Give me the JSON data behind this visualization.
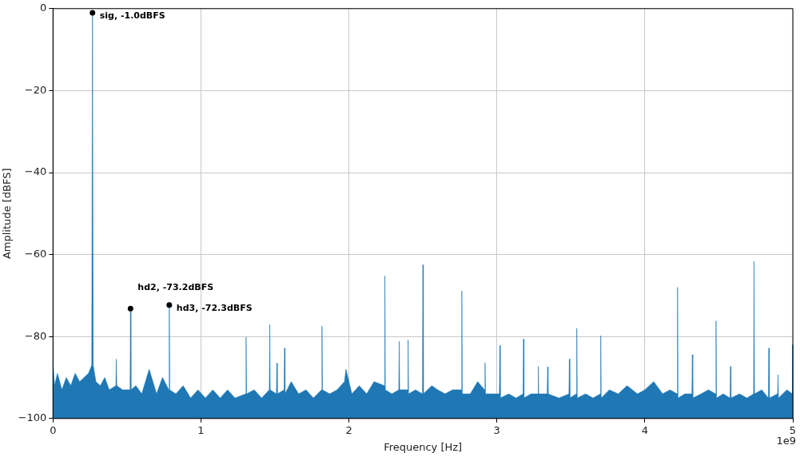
{
  "chart_data": {
    "type": "area",
    "xlabel": "Frequency [Hz]",
    "ylabel": "Amplitude [dBFS]",
    "xlim": [
      0,
      5
    ],
    "ylim": [
      -100,
      0
    ],
    "xticks": [
      0,
      1,
      2,
      3,
      4,
      5
    ],
    "yticks": [
      {
        "value": -100,
        "label": "−100"
      },
      {
        "value": -80,
        "label": "−80"
      },
      {
        "value": -60,
        "label": "−60"
      },
      {
        "value": -40,
        "label": "−40"
      },
      {
        "value": -20,
        "label": "−20"
      },
      0
    ],
    "grid": true,
    "annotations": [
      {
        "text": "sig, -1.0dBFS",
        "x": 0.267,
        "y": -1.0
      },
      {
        "text": "hd2, -73.2dBFS",
        "x": 0.524,
        "y": -73.2
      },
      {
        "text": "hd3, -72.3dBFS",
        "x": 0.786,
        "y": -72.3
      },
      "1e9"
    ],
    "series": [
      {
        "color": "#1f77b4",
        "x": [
          0,
          0,
          0.01,
          0.03,
          0.06,
          0.09,
          0.12,
          0.15,
          0.18,
          0.21,
          0.24,
          0.262,
          0.267,
          0.272,
          0.29,
          0.32,
          0.35,
          0.38,
          0.425,
          0.428,
          0.431,
          0.47,
          0.521,
          0.524,
          0.527,
          0.56,
          0.6,
          0.65,
          0.7,
          0.74,
          0.783,
          0.786,
          0.789,
          0.83,
          0.88,
          0.93,
          0.98,
          1.03,
          1.08,
          1.13,
          1.18,
          1.23,
          1.302,
          1.305,
          1.308,
          1.36,
          1.41,
          1.462,
          1.465,
          1.468,
          1.51,
          1.513,
          1.516,
          1.562,
          1.565,
          1.568,
          1.61,
          1.66,
          1.71,
          1.76,
          1.815,
          1.818,
          1.821,
          1.87,
          1.92,
          1.97,
          1.98,
          2.02,
          2.07,
          2.12,
          2.17,
          2.24,
          2.243,
          2.246,
          2.29,
          2.337,
          2.34,
          2.343,
          2.397,
          2.4,
          2.403,
          2.45,
          2.497,
          2.5,
          2.503,
          2.56,
          2.6,
          2.65,
          2.7,
          2.76,
          2.763,
          2.766,
          2.82,
          2.87,
          2.917,
          2.92,
          2.923,
          2.97,
          3.017,
          3.02,
          3.023,
          3.08,
          3.13,
          3.177,
          3.18,
          3.183,
          3.23,
          3.277,
          3.28,
          3.283,
          3.34,
          3.343,
          3.346,
          3.42,
          3.487,
          3.49,
          3.493,
          3.537,
          3.54,
          3.543,
          3.6,
          3.65,
          3.699,
          3.702,
          3.705,
          3.76,
          3.82,
          3.88,
          3.95,
          4.0,
          4.06,
          4.12,
          4.17,
          4.218,
          4.221,
          4.224,
          4.27,
          4.318,
          4.321,
          4.324,
          4.38,
          4.43,
          4.478,
          4.481,
          4.484,
          4.53,
          4.576,
          4.579,
          4.582,
          4.64,
          4.69,
          4.735,
          4.738,
          4.741,
          4.79,
          4.835,
          4.838,
          4.841,
          4.897,
          4.9,
          4.903,
          4.96,
          4.997,
          5.0,
          5.0
        ],
        "values": [
          -100,
          -86,
          -92,
          -89,
          -93,
          -90,
          -92,
          -89,
          -91,
          -90,
          -89,
          -87,
          -1.0,
          -87,
          -91,
          -92,
          -90,
          -93,
          -92,
          -85.5,
          -92,
          -93,
          -93,
          -73.2,
          -93,
          -92,
          -94,
          -88,
          -94,
          -90,
          -93,
          -72.3,
          -93,
          -94,
          -92,
          -95,
          -93,
          -95,
          -93,
          -95,
          -93,
          -95,
          -94,
          -80.2,
          -94,
          -93,
          -95,
          -93,
          -77.1,
          -93,
          -94,
          -86.5,
          -94,
          -93,
          -82.8,
          -94,
          -91,
          -94,
          -93,
          -95,
          -93,
          -77.5,
          -93,
          -94,
          -93,
          -91,
          -88,
          -94,
          -92,
          -94,
          -91,
          -92,
          -65.2,
          -93,
          -94,
          -93,
          -81.2,
          -93,
          -93,
          -80.8,
          -94,
          -93,
          -94,
          -62.5,
          -94,
          -92,
          -93,
          -94,
          -93,
          -93,
          -68.9,
          -94,
          -94,
          -91,
          -93,
          -86.4,
          -94,
          -94,
          -94,
          -82.2,
          -95,
          -94,
          -95,
          -94,
          -80.6,
          -95,
          -94,
          -94,
          -87.3,
          -94,
          -94,
          -87.4,
          -94,
          -95,
          -94,
          -85.5,
          -95,
          -94,
          -78.0,
          -95,
          -94,
          -95,
          -94,
          -79.8,
          -95,
          -93,
          -94,
          -92,
          -94,
          -93,
          -91,
          -94,
          -93,
          -94,
          -68.0,
          -95,
          -94,
          -94,
          -84.4,
          -95,
          -94,
          -93,
          -94,
          -76.2,
          -95,
          -94,
          -95,
          -87.3,
          -95,
          -94,
          -95,
          -94,
          -61.6,
          -94,
          -93,
          -95,
          -82.8,
          -95,
          -94,
          -89.3,
          -95,
          -93,
          -94,
          -82,
          -100
        ]
      }
    ]
  }
}
